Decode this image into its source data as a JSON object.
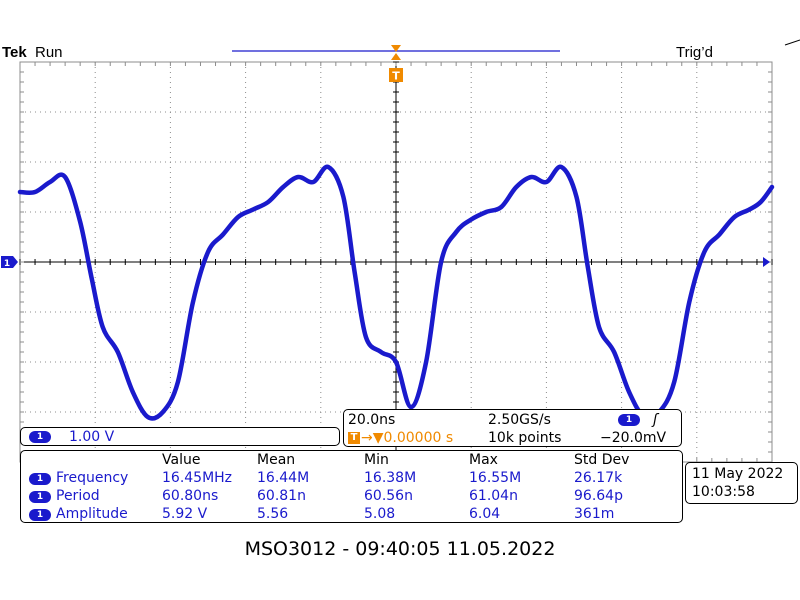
{
  "header": {
    "brand": "Tek",
    "run_state": "Run",
    "trigger_state": "Trig’d"
  },
  "markers": {
    "trigger_marker": "T",
    "channel_marker": "1"
  },
  "channel_box": {
    "channel": "1",
    "scale": "1.00 V"
  },
  "timebase_box": {
    "time_per_div": "20.0ns",
    "sample_rate": "2.50GS/s",
    "trigger_channel": "1",
    "trigger_slope_symbol": "ʃ",
    "trigger_icon": "T",
    "trigger_position": "→▼0.00000 s",
    "record_length": "10k points",
    "trigger_level": "−20.0mV"
  },
  "measurements": {
    "headers": [
      "Value",
      "Mean",
      "Min",
      "Max",
      "Std Dev"
    ],
    "rows": [
      {
        "channel": "1",
        "name": "Frequency",
        "values": [
          "16.45MHz",
          "16.44M",
          "16.38M",
          "16.55M",
          "26.17k"
        ]
      },
      {
        "channel": "1",
        "name": "Period",
        "values": [
          "60.80ns",
          "60.81n",
          "60.56n",
          "61.04n",
          "96.64p"
        ]
      },
      {
        "channel": "1",
        "name": "Amplitude",
        "values": [
          "5.92 V",
          "5.56",
          "5.08",
          "6.04",
          "361m"
        ]
      }
    ]
  },
  "datetime_box": {
    "date": "11 May 2022",
    "time": "10:03:58"
  },
  "footer": "MSO3012 - 09:40:05    11.05.2022",
  "colors": {
    "trace": "#1a1acc",
    "grid": "#8c8c8c",
    "trigger": "#f08a00"
  },
  "chart_data": {
    "type": "line",
    "x_unit": "s",
    "y_unit": "V",
    "time_per_div": 2e-08,
    "volts_per_div": 1.0,
    "divisions_x": 10,
    "divisions_y": 8,
    "xlim": [
      -1e-07,
      1e-07
    ],
    "ylim": [
      -4,
      4
    ],
    "grid": true,
    "series": [
      {
        "x": [
          -1e-07,
          -9.6e-08,
          -9.2e-08,
          -8.8e-08,
          -8.4e-08,
          -8.1e-08,
          -7.8e-08,
          -7.4e-08,
          -7e-08,
          -6.6e-08,
          -6.2e-08,
          -5.8e-08,
          -5.4e-08,
          -5e-08,
          -4.6e-08,
          -4.2e-08,
          -3.8e-08,
          -3.4e-08,
          -3e-08,
          -2.6e-08,
          -2.2e-08,
          -1.8e-08,
          -1.4e-08,
          -1.1e-08,
          -8e-09,
          -4e-09,
          0,
          4e-09,
          8e-09,
          1.2e-08,
          1.6e-08,
          2e-08,
          2.4e-08,
          2.8e-08,
          3.2e-08,
          3.6e-08,
          4e-08,
          4.4e-08,
          4.8e-08,
          5.1e-08,
          5.4e-08,
          5.8e-08,
          6.2e-08,
          6.6e-08,
          7e-08,
          7.4e-08,
          7.8e-08,
          8.2e-08,
          8.6e-08,
          9e-08,
          9.4e-08,
          9.7e-08,
          1e-07
        ],
        "y": [
          1.4,
          1.4,
          1.6,
          1.7,
          0.8,
          -0.3,
          -1.3,
          -1.8,
          -2.6,
          -3.1,
          -3.0,
          -2.4,
          -0.8,
          0.2,
          0.55,
          0.9,
          1.05,
          1.2,
          1.5,
          1.7,
          1.6,
          1.9,
          1.3,
          -0.2,
          -1.5,
          -1.8,
          -2.0,
          -2.9,
          -2.0,
          0.0,
          0.6,
          0.85,
          1.0,
          1.1,
          1.5,
          1.7,
          1.6,
          1.9,
          1.3,
          -0.1,
          -1.3,
          -1.8,
          -2.6,
          -3.1,
          -3.0,
          -2.4,
          -0.8,
          0.2,
          0.55,
          0.9,
          1.05,
          1.2,
          1.5
        ]
      }
    ]
  }
}
